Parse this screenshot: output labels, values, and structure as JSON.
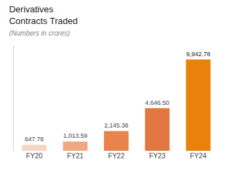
{
  "chart_data": {
    "type": "bar",
    "title": [
      "Derivatives",
      "Contracts Traded"
    ],
    "subtitle": "(Numbers in crores)",
    "categories": [
      "FY20",
      "FY21",
      "FY22",
      "FY23",
      "FY24"
    ],
    "values": [
      647.78,
      1013.59,
      2145.38,
      4646.5,
      9942.78
    ],
    "value_labels": [
      "647.78",
      "1,013.59",
      "2,145.38",
      "4,646.50",
      "9,942.78"
    ],
    "colors": [
      "#f5d5c5",
      "#f0a882",
      "#e8834a",
      "#e07840",
      "#e8820a"
    ],
    "ylim": [
      0,
      11500
    ],
    "data_labels": true,
    "tick_labels": "x",
    "grid": false
  }
}
